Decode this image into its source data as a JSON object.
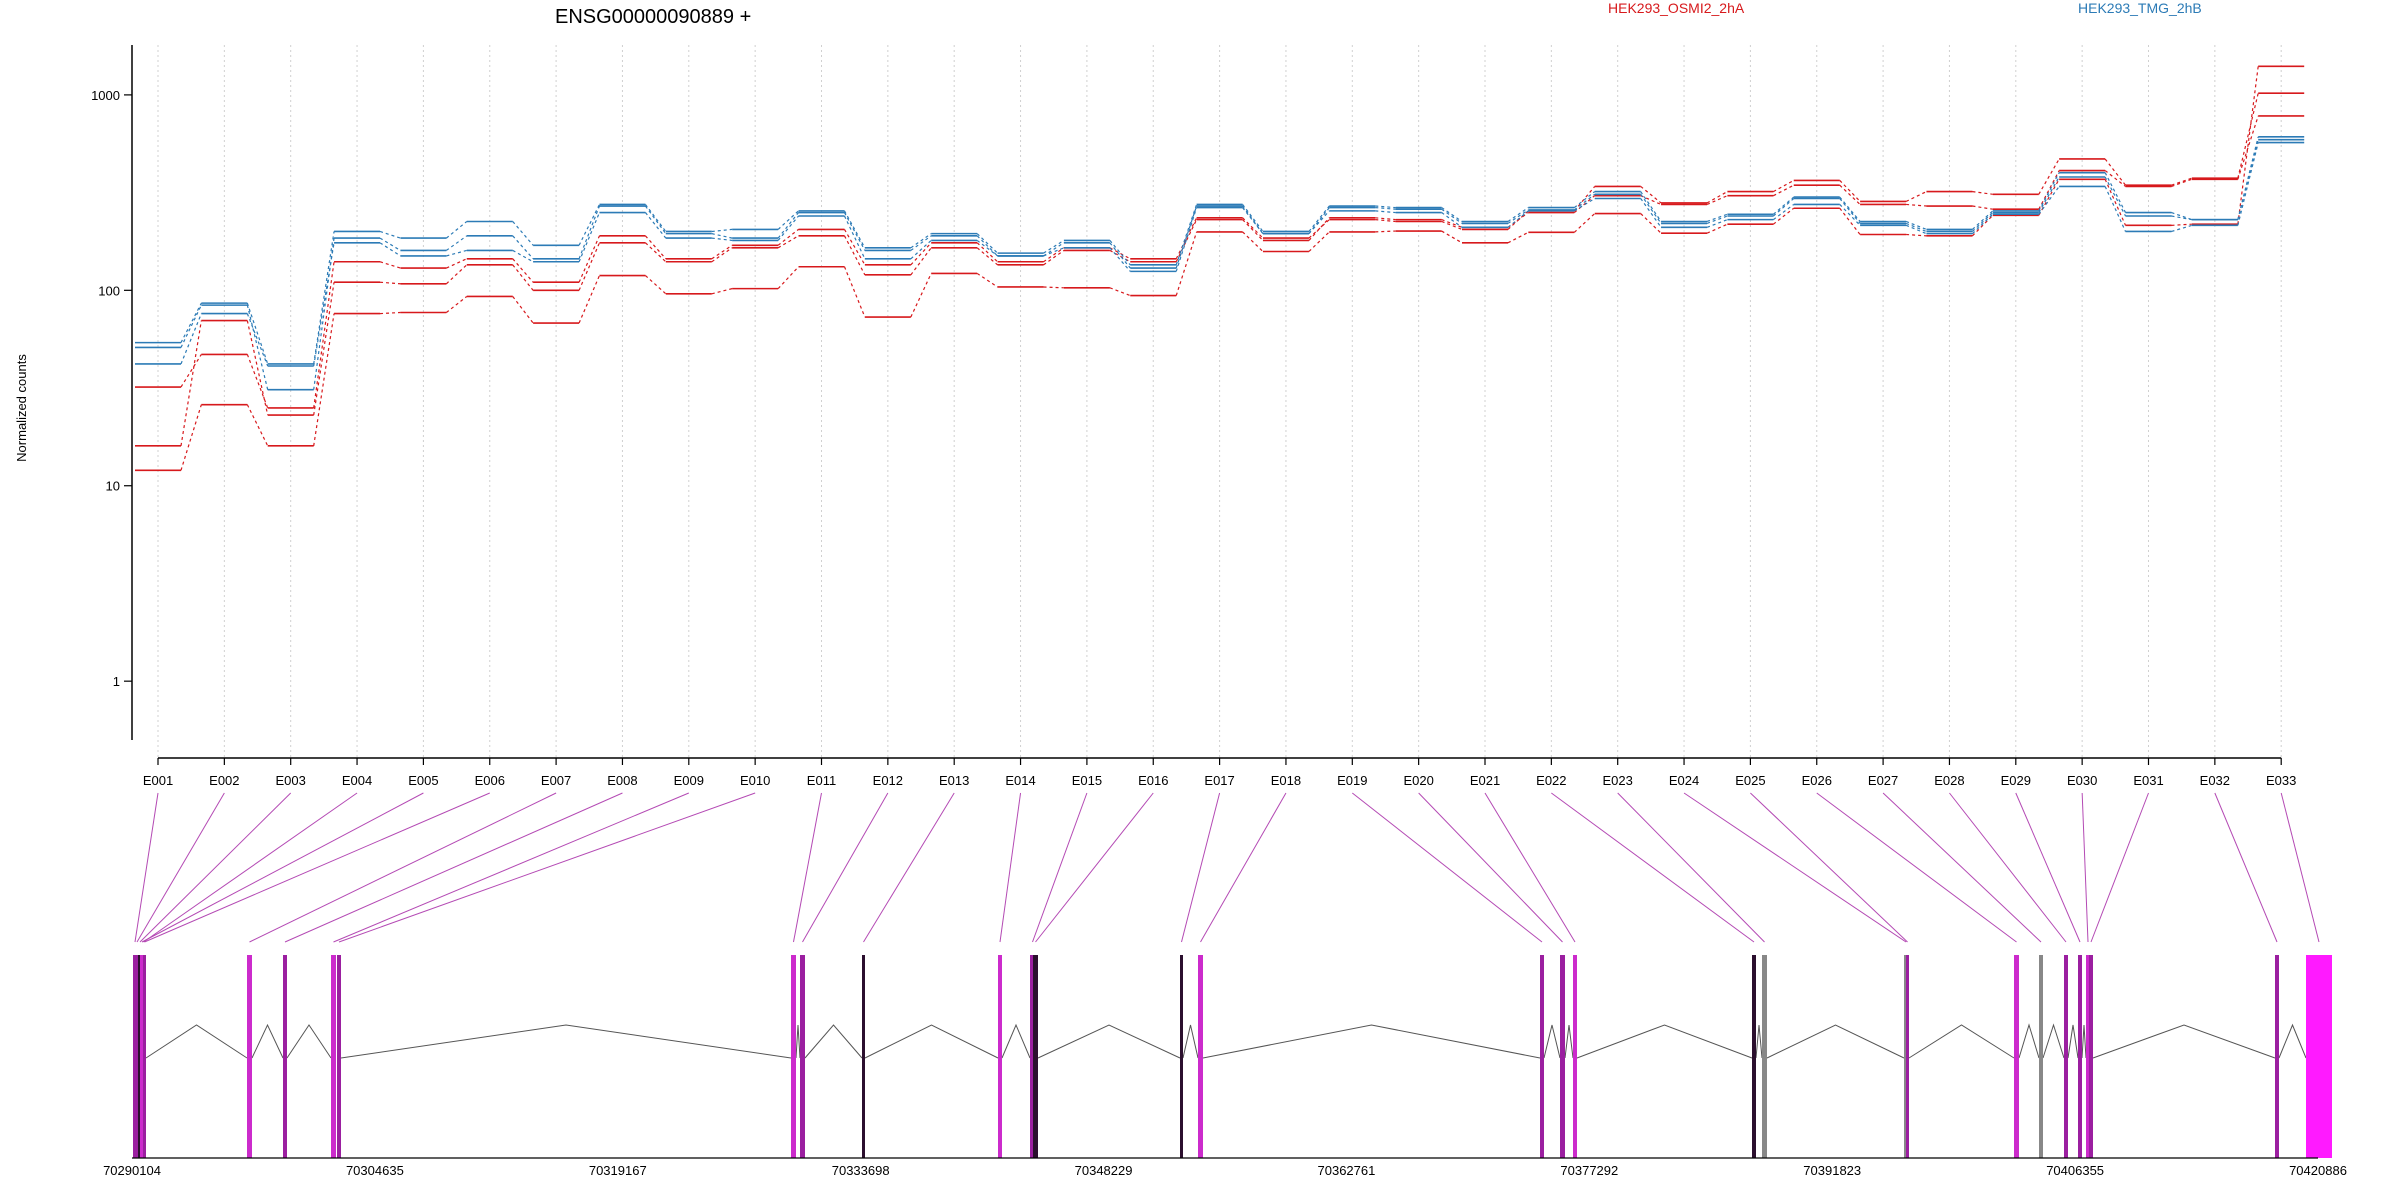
{
  "chart_data": {
    "type": "line",
    "title": "ENSG00000090889 +",
    "ylabel": "Normalized counts",
    "xlabel": "",
    "yscale": "log",
    "ylim": [
      0.5,
      1800
    ],
    "yticks": [
      1,
      10,
      100,
      1000
    ],
    "ytick_labels": [
      "1",
      "10",
      "100",
      "1000"
    ],
    "grid": "vertical-dotted",
    "legend": [
      {
        "name": "HEK293_OSMI2_2hA",
        "color": "#d7191c",
        "placement": "top-center-right"
      },
      {
        "name": "HEK293_TMG_2hB",
        "color": "#2c7bb6",
        "placement": "top-right"
      }
    ],
    "categories": [
      "E001",
      "E002",
      "E003",
      "E004",
      "E005",
      "E006",
      "E007",
      "E008",
      "E009",
      "E010",
      "E011",
      "E012",
      "E013",
      "E014",
      "E015",
      "E016",
      "E017",
      "E018",
      "E019",
      "E020",
      "E021",
      "E022",
      "E023",
      "E024",
      "E025",
      "E026",
      "E027",
      "E028",
      "E029",
      "E030",
      "E031",
      "E032",
      "E033"
    ],
    "series": [
      {
        "group": "HEK293_OSMI2_2hA",
        "color": "#d7191c",
        "values": [
          32,
          47,
          25,
          140,
          130,
          145,
          110,
          190,
          145,
          170,
          205,
          135,
          175,
          140,
          165,
          145,
          235,
          185,
          230,
          225,
          205,
          255,
          340,
          280,
          320,
          365,
          285,
          320,
          310,
          470,
          345,
          375,
          1020
        ]
      },
      {
        "group": "HEK293_OSMI2_2hA",
        "color": "#d7191c",
        "values": [
          16,
          70,
          23,
          110,
          108,
          135,
          100,
          175,
          140,
          165,
          190,
          120,
          165,
          135,
          160,
          140,
          230,
          180,
          235,
          230,
          210,
          250,
          305,
          275,
          305,
          345,
          275,
          270,
          260,
          410,
          340,
          370,
          780
        ]
      },
      {
        "group": "HEK293_OSMI2_2hA",
        "color": "#d7191c",
        "values": [
          12,
          26,
          16,
          76,
          77,
          93,
          68,
          119,
          96,
          102,
          132,
          73,
          122,
          104,
          103,
          94,
          199,
          158,
          199,
          201,
          175,
          198,
          247,
          196,
          218,
          263,
          193,
          190,
          242,
          370,
          215,
          218,
          1400
        ]
      },
      {
        "group": "HEK293_TMG_2hB",
        "color": "#2c7bb6",
        "values": [
          54,
          86,
          42,
          200,
          185,
          225,
          170,
          275,
          200,
          205,
          255,
          165,
          195,
          155,
          180,
          135,
          275,
          200,
          270,
          265,
          225,
          265,
          320,
          225,
          245,
          300,
          225,
          205,
          255,
          400,
          250,
          230,
          610
        ]
      },
      {
        "group": "HEK293_TMG_2hB",
        "color": "#2c7bb6",
        "values": [
          51,
          84,
          31,
          185,
          160,
          190,
          145,
          270,
          195,
          185,
          250,
          160,
          190,
          150,
          175,
          130,
          270,
          195,
          265,
          260,
          220,
          258,
          310,
          220,
          240,
          295,
          220,
          200,
          250,
          380,
          240,
          230,
          590
        ]
      },
      {
        "group": "HEK293_TMG_2hB",
        "color": "#2c7bb6",
        "values": [
          42,
          76,
          41,
          175,
          150,
          160,
          140,
          250,
          185,
          180,
          240,
          145,
          180,
          150,
          165,
          125,
          265,
          195,
          255,
          250,
          210,
          255,
          295,
          210,
          230,
          275,
          215,
          195,
          245,
          340,
          200,
          215,
          570
        ]
      }
    ],
    "gene_model": {
      "coordinate_ticks": [
        "70290104",
        "70304635",
        "70319167",
        "70333698",
        "70348229",
        "70362761",
        "70377292",
        "70391823",
        "70406355",
        "70420886"
      ],
      "range": [
        70290104,
        70420886
      ]
    }
  }
}
